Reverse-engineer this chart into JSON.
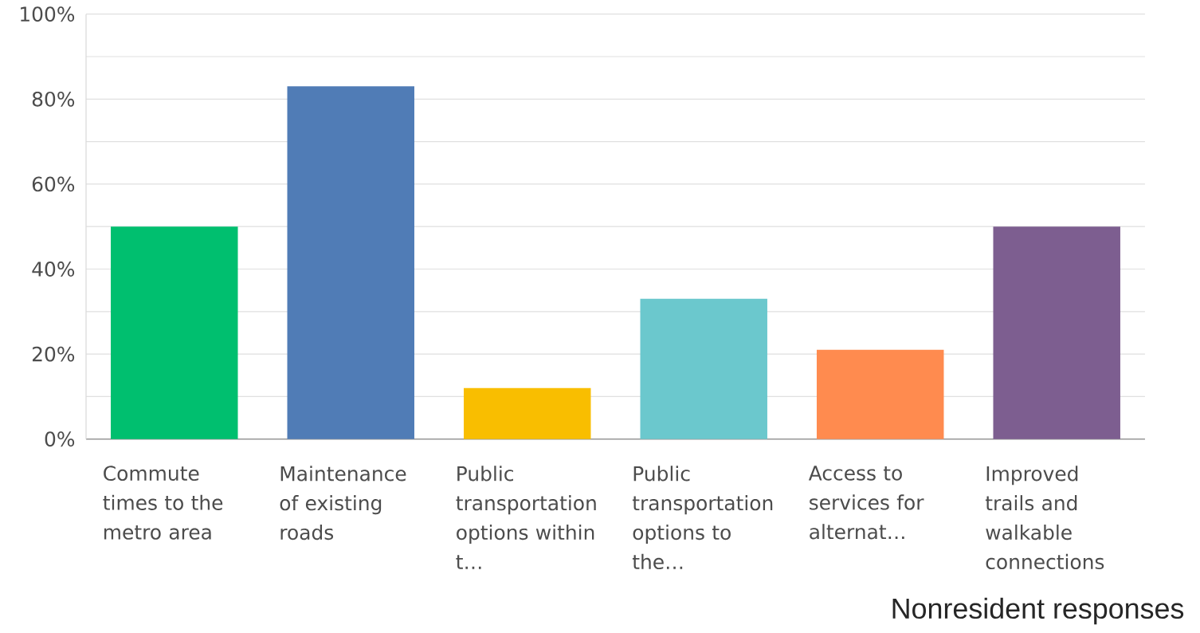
{
  "chart_data": {
    "type": "bar",
    "categories": [
      "Commute times to the metro area",
      "Maintenance of existing roads",
      "Public transportation options within t…",
      "Public transportation options to the…",
      "Access to services for alternat…",
      "Improved trails and walkable connections"
    ],
    "values": [
      50,
      83,
      12,
      33,
      21,
      50
    ],
    "colors": [
      "#00bf6f",
      "#507cb6",
      "#f9be00",
      "#6bc8cd",
      "#ff8b4f",
      "#7d5e90"
    ],
    "ylim": [
      0,
      100
    ],
    "yticks": [
      {
        "value": 0,
        "label": "0%"
      },
      {
        "value": 10,
        "label": null
      },
      {
        "value": 20,
        "label": "20%"
      },
      {
        "value": 30,
        "label": null
      },
      {
        "value": 40,
        "label": "40%"
      },
      {
        "value": 50,
        "label": null
      },
      {
        "value": 60,
        "label": "60%"
      },
      {
        "value": 70,
        "label": null
      },
      {
        "value": 80,
        "label": "80%"
      },
      {
        "value": 90,
        "label": null
      },
      {
        "value": 100,
        "label": "100%"
      }
    ],
    "grid": "y",
    "annotations": [
      "Nonresident responses"
    ]
  }
}
